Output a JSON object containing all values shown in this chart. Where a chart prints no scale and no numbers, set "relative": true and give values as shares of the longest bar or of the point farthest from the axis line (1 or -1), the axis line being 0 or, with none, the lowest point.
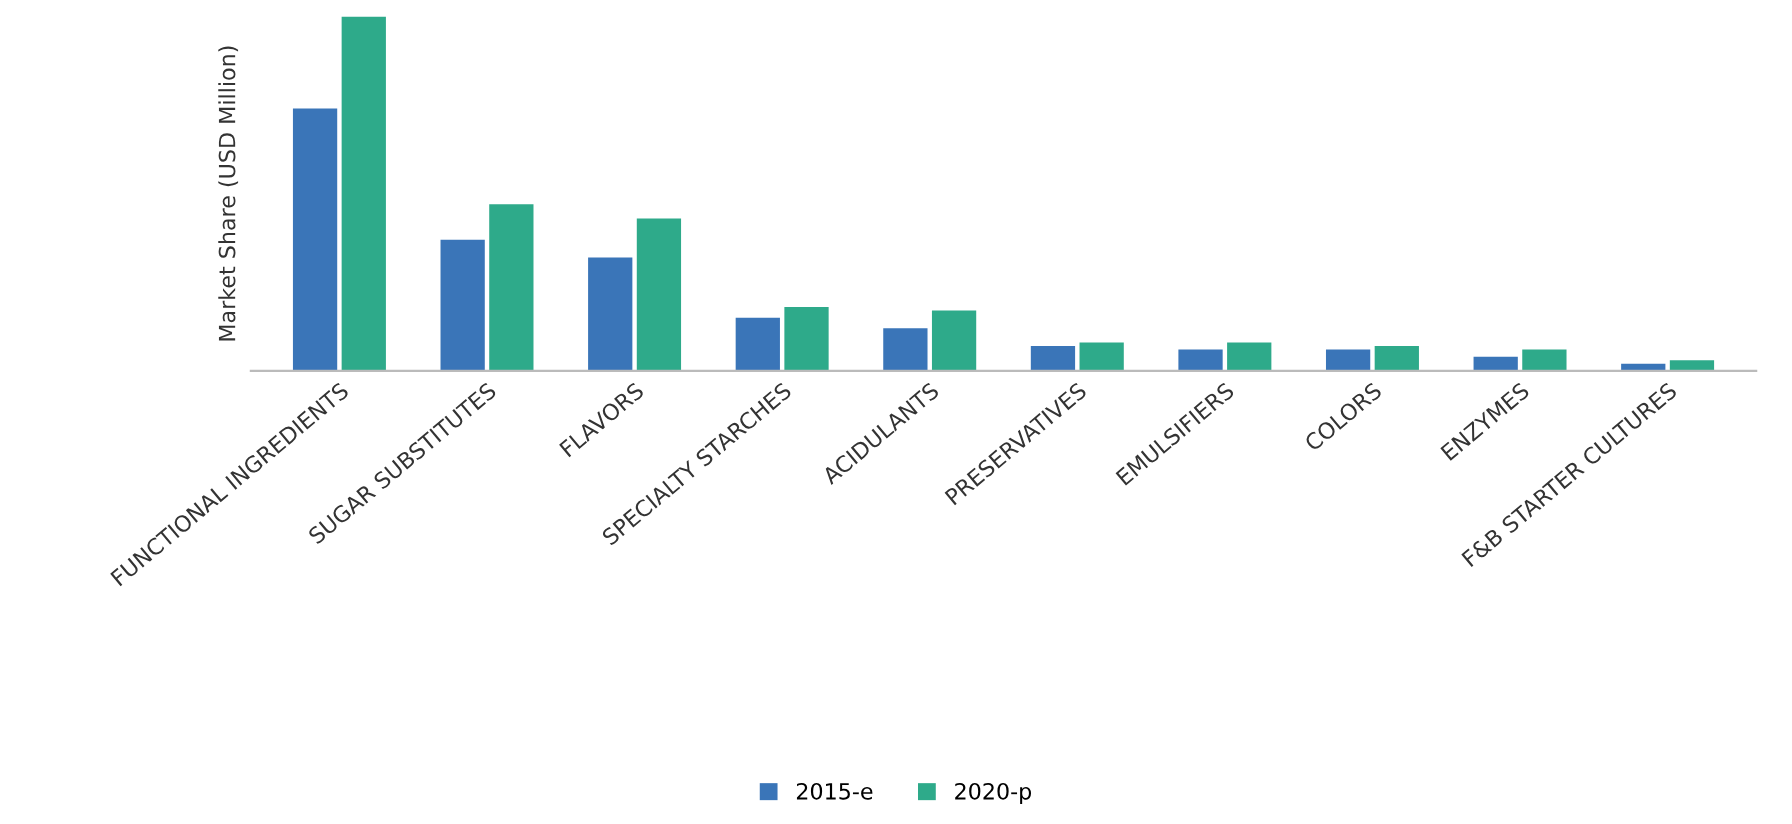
{
  "chart_data": {
    "type": "bar",
    "relative": true,
    "ylabel": "Market Share (USD Million)",
    "categories": [
      "FUNCTIONAL INGREDIENTS",
      "SUGAR SUBSTITUTES",
      "FLAVORS",
      "SPECIALTY STARCHES",
      "ACIDULANTS",
      "PRESERVATIVES",
      "EMULSIFIERS",
      "COLORS",
      "ENZYMES",
      "F&B STARTER CULTURES"
    ],
    "series": [
      {
        "name": "2015-e",
        "color": "#3a75b8",
        "values": [
          0.74,
          0.37,
          0.32,
          0.15,
          0.12,
          0.07,
          0.06,
          0.06,
          0.04,
          0.02
        ]
      },
      {
        "name": "2020-p",
        "color": "#2eaa8a",
        "values": [
          1,
          0.47,
          0.43,
          0.18,
          0.17,
          0.08,
          0.08,
          0.07,
          0.06,
          0.03
        ]
      }
    ],
    "legend": "bottom",
    "grid": false
  }
}
